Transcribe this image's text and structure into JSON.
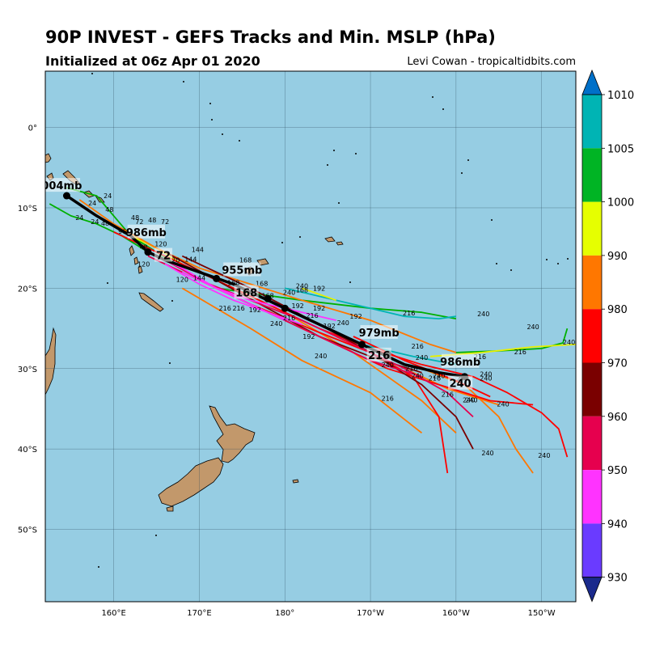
{
  "header": {
    "title": "90P INVEST - GEFS Tracks and Min. MSLP (hPa)",
    "subtitle": "Initialized at 06z Apr 01 2020",
    "credit": "Levi Cowan - tropicaltidbits.com"
  },
  "map": {
    "lon_range": [
      152,
      214
    ],
    "lat_range": [
      -59,
      7
    ],
    "lat_ticks": [
      {
        "value": 0,
        "label": "0°"
      },
      {
        "value": -10,
        "label": "10°S"
      },
      {
        "value": -20,
        "label": "20°S"
      },
      {
        "value": -30,
        "label": "30°S"
      },
      {
        "value": -40,
        "label": "40°S"
      },
      {
        "value": -50,
        "label": "50°S"
      }
    ],
    "lon_ticks": [
      {
        "value": 160,
        "label": "160°E"
      },
      {
        "value": 170,
        "label": "170°E"
      },
      {
        "value": 180,
        "label": "180°"
      },
      {
        "value": 190,
        "label": "170°W"
      },
      {
        "value": 200,
        "label": "160°W"
      },
      {
        "value": 210,
        "label": "150°W"
      }
    ],
    "colors": {
      "ocean": "#96cde3",
      "land": "#c2986b",
      "grid": "#2f4f5f"
    },
    "ensemble_tracks": [
      {
        "color": "#00b000",
        "points": [
          [
            154.5,
            -7.5
          ],
          [
            158,
            -8.5
          ],
          [
            160,
            -11
          ],
          [
            162,
            -13.5
          ],
          [
            165,
            -15.5
          ],
          [
            168,
            -17.5
          ]
        ]
      },
      {
        "color": "#00b000",
        "points": [
          [
            152.5,
            -9.5
          ],
          [
            155,
            -11
          ],
          [
            158,
            -12
          ],
          [
            161,
            -13.5
          ],
          [
            164,
            -15.5
          ]
        ]
      },
      {
        "color": "#00b000",
        "points": [
          [
            172,
            -20
          ],
          [
            182,
            -21.5
          ],
          [
            190,
            -22.5
          ],
          [
            196,
            -23
          ],
          [
            200,
            -23.8
          ]
        ]
      },
      {
        "color": "#00b000",
        "points": [
          [
            200,
            -28
          ],
          [
            205,
            -27.8
          ],
          [
            210,
            -27.5
          ],
          [
            212.5,
            -26.8
          ],
          [
            213,
            -25
          ]
        ]
      },
      {
        "color": "#00b4b4",
        "points": [
          [
            180,
            -20
          ],
          [
            188,
            -22
          ],
          [
            194,
            -23.5
          ],
          [
            198,
            -23.8
          ],
          [
            200,
            -23.5
          ]
        ]
      },
      {
        "color": "#00b4b4",
        "points": [
          [
            189,
            -27
          ],
          [
            195,
            -28.5
          ],
          [
            200,
            -29.5
          ]
        ]
      },
      {
        "color": "#e8f000",
        "points": [
          [
            162,
            -13.5
          ],
          [
            165,
            -15
          ],
          [
            168,
            -17
          ]
        ]
      },
      {
        "color": "#e8f000",
        "points": [
          [
            182,
            -20
          ],
          [
            186,
            -21.5
          ]
        ]
      },
      {
        "color": "#e8f000",
        "points": [
          [
            197,
            -28.5
          ],
          [
            203,
            -28
          ],
          [
            209,
            -27.3
          ],
          [
            214,
            -27
          ]
        ]
      },
      {
        "color": "#ff7700",
        "points": [
          [
            156,
            -9
          ],
          [
            160,
            -12
          ],
          [
            165,
            -15
          ],
          [
            170,
            -17.5
          ],
          [
            176,
            -19.5
          ],
          [
            182,
            -21.5
          ],
          [
            190,
            -24
          ],
          [
            197,
            -27
          ],
          [
            200,
            -28
          ]
        ]
      },
      {
        "color": "#ff7700",
        "points": [
          [
            172,
            -19
          ],
          [
            180,
            -23
          ],
          [
            188,
            -28
          ],
          [
            196,
            -34
          ],
          [
            200,
            -38
          ]
        ]
      },
      {
        "color": "#ff7700",
        "points": [
          [
            168,
            -20
          ],
          [
            176,
            -25
          ],
          [
            182,
            -29
          ],
          [
            190,
            -33
          ],
          [
            196,
            -38
          ]
        ]
      },
      {
        "color": "#ff7700",
        "points": [
          [
            196,
            -30
          ],
          [
            201,
            -32
          ],
          [
            205,
            -36
          ],
          [
            207,
            -40
          ],
          [
            209,
            -43
          ]
        ]
      },
      {
        "color": "#ff7700",
        "points": [
          [
            186,
            -26
          ],
          [
            193,
            -29.5
          ],
          [
            199,
            -32.5
          ],
          [
            205,
            -34.5
          ]
        ]
      },
      {
        "color": "#ff0000",
        "points": [
          [
            160,
            -13
          ],
          [
            166,
            -16
          ],
          [
            172,
            -19
          ],
          [
            178,
            -22
          ],
          [
            184,
            -25
          ],
          [
            190,
            -27.5
          ],
          [
            196,
            -29.5
          ],
          [
            202,
            -31
          ],
          [
            206,
            -33
          ],
          [
            210,
            -35.5
          ],
          [
            212,
            -37.5
          ],
          [
            213,
            -41
          ]
        ]
      },
      {
        "color": "#ff0000",
        "points": [
          [
            168,
            -18
          ],
          [
            176,
            -22
          ],
          [
            184,
            -25.5
          ],
          [
            190,
            -28
          ],
          [
            195,
            -31
          ],
          [
            198,
            -36
          ],
          [
            199,
            -43
          ]
        ]
      },
      {
        "color": "#ff0000",
        "points": [
          [
            170,
            -19
          ],
          [
            178,
            -23
          ],
          [
            186,
            -27
          ],
          [
            192,
            -30
          ],
          [
            198,
            -32
          ],
          [
            204,
            -34
          ],
          [
            209,
            -34.5
          ]
        ]
      },
      {
        "color": "#ff0000",
        "points": [
          [
            188,
            -26
          ],
          [
            194,
            -29
          ],
          [
            200,
            -31.5
          ],
          [
            204,
            -33.5
          ]
        ]
      },
      {
        "color": "#7a0000",
        "points": [
          [
            168,
            -16
          ],
          [
            176,
            -20
          ],
          [
            184,
            -24.5
          ],
          [
            190,
            -28
          ],
          [
            196,
            -32
          ],
          [
            200,
            -36
          ],
          [
            202,
            -40
          ]
        ]
      },
      {
        "color": "#7a0000",
        "points": [
          [
            166,
            -15.5
          ],
          [
            172,
            -19
          ],
          [
            178,
            -22.5
          ],
          [
            184,
            -26
          ],
          [
            190,
            -28.5
          ],
          [
            196,
            -30.5
          ]
        ]
      },
      {
        "color": "#e6004e",
        "points": [
          [
            164,
            -16
          ],
          [
            170,
            -19
          ],
          [
            176,
            -21.5
          ],
          [
            182,
            -24
          ],
          [
            188,
            -27
          ],
          [
            194,
            -30
          ],
          [
            199,
            -33
          ],
          [
            202,
            -36
          ]
        ]
      },
      {
        "color": "#e6004e",
        "points": [
          [
            166,
            -16.5
          ],
          [
            172,
            -20
          ],
          [
            178,
            -23
          ],
          [
            184,
            -26
          ],
          [
            190,
            -29
          ],
          [
            196,
            -31
          ]
        ]
      },
      {
        "color": "#ff33ff",
        "points": [
          [
            164,
            -15.5
          ],
          [
            168,
            -17.5
          ],
          [
            172,
            -20
          ],
          [
            176,
            -22
          ],
          [
            180,
            -24
          ]
        ]
      },
      {
        "color": "#ff33ff",
        "points": [
          [
            166,
            -17
          ],
          [
            170,
            -19.5
          ],
          [
            174,
            -21.5
          ],
          [
            178,
            -23
          ],
          [
            182,
            -24.5
          ]
        ]
      },
      {
        "color": "#ff33ff",
        "points": [
          [
            168,
            -18
          ],
          [
            172,
            -20
          ],
          [
            176,
            -21.5
          ],
          [
            180,
            -22.5
          ],
          [
            186,
            -24
          ]
        ]
      }
    ],
    "mean_track": {
      "color": "#000000",
      "points": [
        [
          154.5,
          -8.5
        ],
        [
          158,
          -11
        ],
        [
          162,
          -13.5
        ],
        [
          164,
          -15.5
        ],
        [
          166,
          -16.5
        ],
        [
          170,
          -18
        ],
        [
          174,
          -19.5
        ],
        [
          176,
          -20.5
        ],
        [
          180,
          -22.5
        ],
        [
          184,
          -24.5
        ],
        [
          189,
          -27
        ],
        [
          194,
          -29.5
        ],
        [
          198,
          -30.5
        ],
        [
          201,
          -31
        ]
      ],
      "markers": [
        [
          154.5,
          -8.5
        ],
        [
          164,
          -15.5
        ],
        [
          172,
          -18.8
        ],
        [
          178,
          -21.3
        ],
        [
          180,
          -22.5
        ],
        [
          189,
          -27
        ],
        [
          192,
          -28.2
        ],
        [
          201,
          -31
        ]
      ]
    },
    "forecast_labels": [
      {
        "text": "1004mb",
        "lon": 153.5,
        "lat": -7.5,
        "size": 13
      },
      {
        "text": "986mb",
        "lon": 163.8,
        "lat": -13.3,
        "size": 13
      },
      {
        "text": "72",
        "lon": 165.8,
        "lat": -16.2,
        "size": 13
      },
      {
        "text": "955mb",
        "lon": 175,
        "lat": -18,
        "size": 13
      },
      {
        "text": "168",
        "lon": 175.5,
        "lat": -20.8,
        "size": 13
      },
      {
        "text": "979mb",
        "lon": 191,
        "lat": -25.8,
        "size": 13
      },
      {
        "text": "216",
        "lon": 191,
        "lat": -28.6,
        "size": 13
      },
      {
        "text": "986mb",
        "lon": 200.5,
        "lat": -29.4,
        "size": 13
      },
      {
        "text": "240",
        "lon": 200.5,
        "lat": -32.1,
        "size": 13
      }
    ],
    "hour_labels": [
      {
        "text": "24",
        "lon": 159.3,
        "lat": -8.8
      },
      {
        "text": "24",
        "lon": 157.5,
        "lat": -9.7
      },
      {
        "text": "24",
        "lon": 156,
        "lat": -11.5
      },
      {
        "text": "24",
        "lon": 157.8,
        "lat": -12
      },
      {
        "text": "48",
        "lon": 159.5,
        "lat": -10.5
      },
      {
        "text": "48",
        "lon": 159,
        "lat": -12.2
      },
      {
        "text": "48",
        "lon": 162.5,
        "lat": -11.5
      },
      {
        "text": "72",
        "lon": 163,
        "lat": -12
      },
      {
        "text": "72",
        "lon": 166,
        "lat": -12
      },
      {
        "text": "48",
        "lon": 164.5,
        "lat": -11.8
      },
      {
        "text": "96",
        "lon": 161,
        "lat": -13.2
      },
      {
        "text": "48",
        "lon": 163.5,
        "lat": -15.2
      },
      {
        "text": "120",
        "lon": 165.5,
        "lat": -14.8
      },
      {
        "text": "120",
        "lon": 167,
        "lat": -16.8
      },
      {
        "text": "144",
        "lon": 169.8,
        "lat": -15.5
      },
      {
        "text": "144",
        "lon": 169,
        "lat": -16.7
      },
      {
        "text": "120",
        "lon": 163.5,
        "lat": -17.3
      },
      {
        "text": "120",
        "lon": 168,
        "lat": -19.2
      },
      {
        "text": "144",
        "lon": 170,
        "lat": -19
      },
      {
        "text": "168",
        "lon": 175.4,
        "lat": -16.8
      },
      {
        "text": "168",
        "lon": 174,
        "lat": -19.6
      },
      {
        "text": "168",
        "lon": 177.3,
        "lat": -19.7
      },
      {
        "text": "168",
        "lon": 182,
        "lat": -20.5
      },
      {
        "text": "168",
        "lon": 178,
        "lat": -21.2
      },
      {
        "text": "192",
        "lon": 184,
        "lat": -20.3
      },
      {
        "text": "192",
        "lon": 181.5,
        "lat": -22.5
      },
      {
        "text": "192",
        "lon": 176.5,
        "lat": -23
      },
      {
        "text": "192",
        "lon": 184,
        "lat": -22.8
      },
      {
        "text": "192",
        "lon": 188.3,
        "lat": -23.8
      },
      {
        "text": "192",
        "lon": 185.2,
        "lat": -25
      },
      {
        "text": "192",
        "lon": 182.8,
        "lat": -26.3
      },
      {
        "text": "216",
        "lon": 173,
        "lat": -22.8
      },
      {
        "text": "216",
        "lon": 174.6,
        "lat": -22.8
      },
      {
        "text": "216",
        "lon": 180.5,
        "lat": -24
      },
      {
        "text": "216",
        "lon": 183.2,
        "lat": -23.7
      },
      {
        "text": "216",
        "lon": 194.5,
        "lat": -23.4
      },
      {
        "text": "216",
        "lon": 195.5,
        "lat": -27.5
      },
      {
        "text": "216",
        "lon": 202.8,
        "lat": -28.8
      },
      {
        "text": "216",
        "lon": 207.5,
        "lat": -28.2
      },
      {
        "text": "216",
        "lon": 194.8,
        "lat": -30.3
      },
      {
        "text": "216",
        "lon": 197.5,
        "lat": -31.5
      },
      {
        "text": "216",
        "lon": 199,
        "lat": -33.5
      },
      {
        "text": "216",
        "lon": 192,
        "lat": -34
      },
      {
        "text": "240",
        "lon": 182,
        "lat": -20
      },
      {
        "text": "240",
        "lon": 180.5,
        "lat": -20.8
      },
      {
        "text": "240",
        "lon": 179,
        "lat": -24.7
      },
      {
        "text": "240",
        "lon": 186.8,
        "lat": -24.6
      },
      {
        "text": "240",
        "lon": 184.2,
        "lat": -28.7
      },
      {
        "text": "240",
        "lon": 192,
        "lat": -29.8
      },
      {
        "text": "240",
        "lon": 196,
        "lat": -28.9
      },
      {
        "text": "240",
        "lon": 195.5,
        "lat": -31.2
      },
      {
        "text": "240",
        "lon": 198,
        "lat": -31.2
      },
      {
        "text": "240",
        "lon": 200.8,
        "lat": -31.5
      },
      {
        "text": "240",
        "lon": 203.5,
        "lat": -31
      },
      {
        "text": "240",
        "lon": 201.5,
        "lat": -34.2
      },
      {
        "text": "240",
        "lon": 203.5,
        "lat": -31.5
      },
      {
        "text": "240",
        "lon": 201.8,
        "lat": -34.2
      },
      {
        "text": "240",
        "lon": 205.5,
        "lat": -34.7
      },
      {
        "text": "240",
        "lon": 203.2,
        "lat": -23.5
      },
      {
        "text": "240",
        "lon": 209,
        "lat": -25.1
      },
      {
        "text": "240",
        "lon": 213.2,
        "lat": -27
      },
      {
        "text": "240",
        "lon": 203.7,
        "lat": -40.8
      },
      {
        "text": "240",
        "lon": 210.3,
        "lat": -41.1
      }
    ]
  },
  "colorbar": {
    "ticks": [
      "1010",
      "1005",
      "1000",
      "990",
      "980",
      "970",
      "960",
      "950",
      "940",
      "930"
    ],
    "segments": [
      "#0070c8",
      "#00b4b4",
      "#00b424",
      "#e6ff00",
      "#ff7700",
      "#ff0000",
      "#7a0000",
      "#e6004e",
      "#ff33ff",
      "#6a3bff",
      "#1a2a8c"
    ]
  }
}
